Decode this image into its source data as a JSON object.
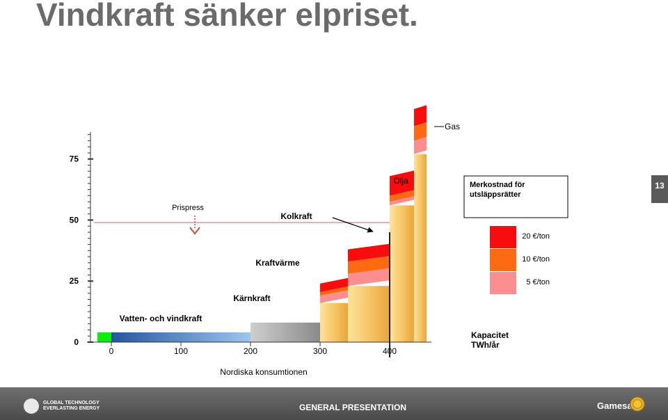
{
  "title": "Vindkraft sänker elpriset.",
  "page_number": "13",
  "footer": {
    "tagline_1": "GLOBAL TECHNOLOGY",
    "tagline_2": "EVERLASTING ENERGY",
    "center": "GENERAL PRESENTATION",
    "brand": "Gamesa"
  },
  "colors": {
    "base": "#f6c15e",
    "tier5": "#fb8e8e",
    "tier10": "#fd6a12",
    "tier20": "#f70d0d",
    "nuclear": "#a9a9a9",
    "hydro_wind": "#3d7ac4",
    "wind_green": "#11ea11",
    "price_line": "#d99a9a",
    "price_arrow": "#cc4b33"
  },
  "chart_data": {
    "type": "bar",
    "subtype": "merit-order-supply-curve",
    "ylim": [
      0,
      90
    ],
    "xlim": [
      -5,
      480
    ],
    "y_ticks": [
      0,
      25,
      50,
      75
    ],
    "x_ticks": [
      0,
      100,
      200,
      300,
      400
    ],
    "xlabel": "Kapacitet TWh/år",
    "consumption_label": "Nordiska konsumtionen",
    "consumption_x": 400,
    "price_label": "Prispress",
    "price_level": 49,
    "wind_shift": 20,
    "legend_title": "Merkostnad för utsläppsrätter",
    "legend_items": [
      {
        "label": "20 €/ton",
        "color_key": "tier20"
      },
      {
        "label": "10 €/ton",
        "color_key": "tier10"
      },
      {
        "label": "5 €/ton",
        "color_key": "tier5"
      }
    ],
    "category_labels": {
      "hydro_wind": "Vatten- och vindkraft",
      "nuclear": "Kärnkraft",
      "chp": "Kraftvärme",
      "coal": "Kolkraft",
      "oil": "Olja",
      "gas": "Gas"
    },
    "blocks": [
      {
        "name": "Vind",
        "x0": 0,
        "x1": 20,
        "base": 4,
        "t5": 0,
        "t10": 0,
        "t20": 0
      },
      {
        "name": "Vatten- och vindkraft",
        "x0": 20,
        "x1": 220,
        "base": 4,
        "t5": 0,
        "t10": 0,
        "t20": 0
      },
      {
        "name": "Kärnkraft",
        "x0": 220,
        "x1": 320,
        "base": 8,
        "t5": 0,
        "t10": 0,
        "t20": 0
      },
      {
        "name": "Kraftvärme",
        "x0": 320,
        "x1": 360,
        "base": 16,
        "t5": 3,
        "t10": 1.5,
        "t20": 3.5
      },
      {
        "name": "Kolkraft",
        "x0": 360,
        "x1": 420,
        "base": 23,
        "t5": 5,
        "t10": 5,
        "t20": 5
      },
      {
        "name": "Olja",
        "x0": 420,
        "x1": 455,
        "base": 56,
        "t5": 1.5,
        "t10": 2.5,
        "t20": 8
      },
      {
        "name": "Gas",
        "x0": 455,
        "x1": 473,
        "base": 77,
        "t5": 5.5,
        "t10": 6,
        "t20": 7
      }
    ]
  }
}
